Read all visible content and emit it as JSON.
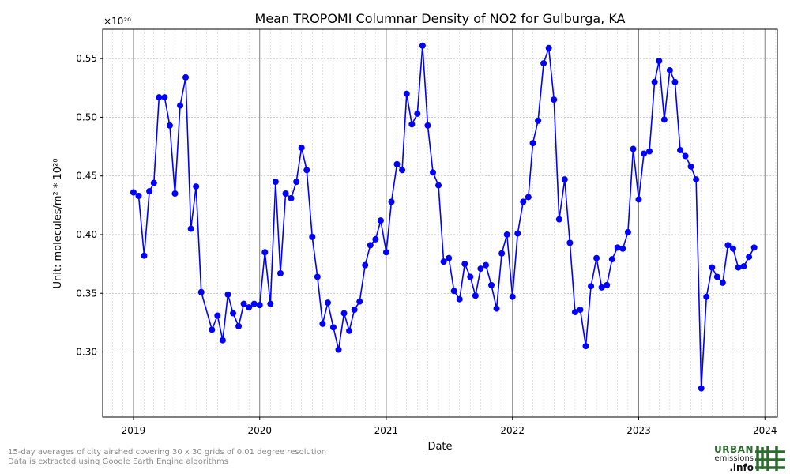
{
  "chart_data": {
    "type": "line",
    "title": "Mean TROPOMI Columnar Density of NO2 for Gulburga, KA",
    "xlabel": "Date",
    "ylabel": "Unit: molecules/m² * 10²⁰",
    "y_offset_text": "×10²⁰",
    "xlim": [
      "2018-10-04",
      "2024-02-06"
    ],
    "ylim": [
      0.2445,
      0.575
    ],
    "x_ticks": [
      "2019",
      "2020",
      "2021",
      "2022",
      "2023",
      "2024"
    ],
    "y_ticks": [
      "0.30",
      "0.35",
      "0.40",
      "0.45",
      "0.50",
      "0.55"
    ],
    "grid": true,
    "color": "#0000ff",
    "series": [
      {
        "points": [
          [
            "2019-01-01",
            0.436
          ],
          [
            "2019-01-16",
            0.433
          ],
          [
            "2019-02-01",
            0.382
          ],
          [
            "2019-02-16",
            0.437
          ],
          [
            "2019-03-01",
            0.444
          ],
          [
            "2019-03-16",
            0.517
          ],
          [
            "2019-04-01",
            0.517
          ],
          [
            "2019-04-16",
            0.493
          ],
          [
            "2019-05-01",
            0.435
          ],
          [
            "2019-05-16",
            0.51
          ],
          [
            "2019-06-01",
            0.534
          ],
          [
            "2019-06-16",
            0.405
          ],
          [
            "2019-07-01",
            0.441
          ],
          [
            "2019-07-16",
            0.351
          ],
          [
            "2019-08-16",
            0.319
          ],
          [
            "2019-09-01",
            0.331
          ],
          [
            "2019-09-16",
            0.31
          ],
          [
            "2019-10-01",
            0.349
          ],
          [
            "2019-10-16",
            0.333
          ],
          [
            "2019-11-01",
            0.322
          ],
          [
            "2019-11-16",
            0.341
          ],
          [
            "2019-12-01",
            0.338
          ],
          [
            "2019-12-16",
            0.341
          ],
          [
            "2020-01-01",
            0.34
          ],
          [
            "2020-01-16",
            0.385
          ],
          [
            "2020-02-01",
            0.341
          ],
          [
            "2020-02-16",
            0.445
          ],
          [
            "2020-03-01",
            0.367
          ],
          [
            "2020-03-16",
            0.435
          ],
          [
            "2020-04-01",
            0.431
          ],
          [
            "2020-04-16",
            0.445
          ],
          [
            "2020-05-01",
            0.474
          ],
          [
            "2020-05-16",
            0.455
          ],
          [
            "2020-06-01",
            0.398
          ],
          [
            "2020-06-16",
            0.364
          ],
          [
            "2020-07-01",
            0.324
          ],
          [
            "2020-07-16",
            0.342
          ],
          [
            "2020-08-01",
            0.321
          ],
          [
            "2020-08-16",
            0.302
          ],
          [
            "2020-09-01",
            0.333
          ],
          [
            "2020-09-16",
            0.318
          ],
          [
            "2020-10-01",
            0.336
          ],
          [
            "2020-10-16",
            0.343
          ],
          [
            "2020-11-01",
            0.374
          ],
          [
            "2020-11-16",
            0.391
          ],
          [
            "2020-12-01",
            0.396
          ],
          [
            "2020-12-16",
            0.412
          ],
          [
            "2021-01-01",
            0.385
          ],
          [
            "2021-01-16",
            0.428
          ],
          [
            "2021-02-01",
            0.46
          ],
          [
            "2021-02-16",
            0.455
          ],
          [
            "2021-03-01",
            0.52
          ],
          [
            "2021-03-16",
            0.494
          ],
          [
            "2021-04-01",
            0.503
          ],
          [
            "2021-04-16",
            0.561
          ],
          [
            "2021-05-01",
            0.493
          ],
          [
            "2021-05-16",
            0.453
          ],
          [
            "2021-06-01",
            0.442
          ],
          [
            "2021-06-16",
            0.377
          ],
          [
            "2021-07-01",
            0.38
          ],
          [
            "2021-07-16",
            0.352
          ],
          [
            "2021-08-01",
            0.345
          ],
          [
            "2021-08-16",
            0.375
          ],
          [
            "2021-09-01",
            0.364
          ],
          [
            "2021-09-16",
            0.348
          ],
          [
            "2021-10-01",
            0.371
          ],
          [
            "2021-10-16",
            0.374
          ],
          [
            "2021-11-01",
            0.357
          ],
          [
            "2021-11-16",
            0.337
          ],
          [
            "2021-12-01",
            0.384
          ],
          [
            "2021-12-16",
            0.4
          ],
          [
            "2022-01-01",
            0.347
          ],
          [
            "2022-01-16",
            0.401
          ],
          [
            "2022-02-01",
            0.428
          ],
          [
            "2022-02-16",
            0.432
          ],
          [
            "2022-03-01",
            0.478
          ],
          [
            "2022-03-16",
            0.497
          ],
          [
            "2022-04-01",
            0.546
          ],
          [
            "2022-04-16",
            0.559
          ],
          [
            "2022-05-01",
            0.515
          ],
          [
            "2022-05-16",
            0.413
          ],
          [
            "2022-06-01",
            0.447
          ],
          [
            "2022-06-16",
            0.393
          ],
          [
            "2022-07-01",
            0.334
          ],
          [
            "2022-07-16",
            0.336
          ],
          [
            "2022-08-01",
            0.305
          ],
          [
            "2022-08-16",
            0.356
          ],
          [
            "2022-09-01",
            0.38
          ],
          [
            "2022-09-16",
            0.355
          ],
          [
            "2022-10-01",
            0.357
          ],
          [
            "2022-10-16",
            0.379
          ],
          [
            "2022-11-01",
            0.389
          ],
          [
            "2022-11-16",
            0.388
          ],
          [
            "2022-12-01",
            0.402
          ],
          [
            "2022-12-16",
            0.473
          ],
          [
            "2023-01-01",
            0.43
          ],
          [
            "2023-01-16",
            0.469
          ],
          [
            "2023-02-01",
            0.471
          ],
          [
            "2023-02-16",
            0.53
          ],
          [
            "2023-03-01",
            0.548
          ],
          [
            "2023-03-16",
            0.498
          ],
          [
            "2023-04-01",
            0.54
          ],
          [
            "2023-04-16",
            0.53
          ],
          [
            "2023-05-01",
            0.472
          ],
          [
            "2023-05-16",
            0.467
          ],
          [
            "2023-06-01",
            0.458
          ],
          [
            "2023-06-16",
            0.447
          ],
          [
            "2023-07-01",
            0.269
          ],
          [
            "2023-07-16",
            0.347
          ],
          [
            "2023-08-01",
            0.372
          ],
          [
            "2023-08-16",
            0.364
          ],
          [
            "2023-09-01",
            0.359
          ],
          [
            "2023-09-16",
            0.391
          ],
          [
            "2023-10-01",
            0.388
          ],
          [
            "2023-10-16",
            0.372
          ],
          [
            "2023-11-01",
            0.373
          ],
          [
            "2023-11-16",
            0.381
          ],
          [
            "2023-12-01",
            0.389
          ]
        ]
      }
    ]
  },
  "footer": {
    "line1": "15-day averages of city airshed covering 30 x 30 grids of 0.01 degree resolution",
    "line2": "Data is extracted using Google Earth Engine algorithms"
  },
  "logo": {
    "text_top": "URBAN",
    "text_middle": "emissions",
    "text_bottom": ".info",
    "color": "#2f6b2f"
  }
}
